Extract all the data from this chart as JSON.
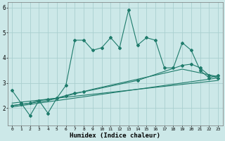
{
  "xlabel": "Humidex (Indice chaleur)",
  "xlim": [
    -0.5,
    23.5
  ],
  "ylim": [
    1.3,
    6.2
  ],
  "yticks": [
    2,
    3,
    4,
    5,
    6
  ],
  "xticks": [
    0,
    1,
    2,
    3,
    4,
    5,
    6,
    7,
    8,
    9,
    10,
    11,
    12,
    13,
    14,
    15,
    16,
    17,
    18,
    19,
    20,
    21,
    22,
    23
  ],
  "bg_color": "#cce8e8",
  "line_color": "#1e7b6b",
  "grid_color": "#aacfcf",
  "series1_x": [
    0,
    1,
    2,
    3,
    4,
    5,
    6,
    7,
    8,
    9,
    10,
    11,
    12,
    13,
    14,
    15,
    16,
    17,
    18,
    19,
    20,
    21,
    22,
    23
  ],
  "series1_y": [
    2.7,
    2.2,
    1.7,
    2.3,
    1.8,
    2.4,
    2.9,
    4.7,
    4.7,
    4.3,
    4.4,
    4.8,
    4.4,
    5.9,
    4.5,
    4.8,
    4.7,
    3.6,
    3.6,
    4.6,
    4.3,
    3.5,
    3.2,
    3.3
  ],
  "series2_x": [
    0,
    1,
    2,
    3,
    4,
    5,
    6,
    7,
    8,
    14,
    19,
    20,
    21,
    22,
    23
  ],
  "series2_y": [
    2.1,
    2.15,
    2.2,
    2.3,
    2.35,
    2.4,
    2.5,
    2.6,
    2.65,
    3.1,
    3.7,
    3.75,
    3.6,
    3.3,
    3.2
  ],
  "series3_x": [
    0,
    23
  ],
  "series3_y": [
    2.05,
    3.2
  ],
  "series4_x": [
    0,
    23
  ],
  "series4_y": [
    2.2,
    3.1
  ],
  "series5_x": [
    0,
    4,
    9,
    14,
    19,
    23
  ],
  "series5_y": [
    2.1,
    2.3,
    2.75,
    3.15,
    3.55,
    3.25
  ]
}
